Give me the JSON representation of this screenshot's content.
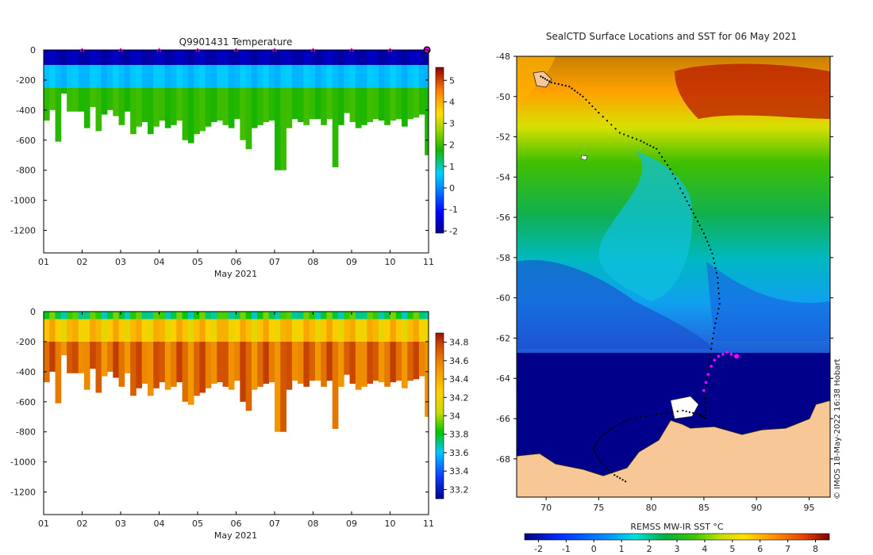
{
  "temperature_panel": {
    "title": "Q9901431  Temperature",
    "xlabel": "May 2021",
    "x_ticks": [
      "01",
      "02",
      "03",
      "04",
      "05",
      "06",
      "07",
      "08",
      "09",
      "10",
      "11"
    ],
    "y_ticks": [
      "0",
      "-200",
      "-400",
      "-600",
      "-800",
      "-1000",
      "-1200"
    ],
    "colorbar_ticks": [
      "5",
      "4",
      "3",
      "2",
      "1",
      "0",
      "-1",
      "-2"
    ]
  },
  "salinity_panel": {
    "xlabel": "May 2021",
    "x_ticks": [
      "01",
      "02",
      "03",
      "04",
      "05",
      "06",
      "07",
      "08",
      "09",
      "10",
      "11"
    ],
    "y_ticks": [
      "0",
      "-200",
      "-400",
      "-600",
      "-800",
      "-1000",
      "-1200"
    ],
    "colorbar_ticks": [
      "34.8",
      "34.6",
      "34.4",
      "34.2",
      "34",
      "33.8",
      "33.6",
      "33.4",
      "33.2"
    ]
  },
  "map_panel": {
    "title": "SealCTD Surface Locations and SST for 06 May 2021",
    "lon_ticks": [
      "70",
      "75",
      "80",
      "85",
      "90",
      "95"
    ],
    "lat_ticks": [
      "-48",
      "-50",
      "-52",
      "-54",
      "-56",
      "-58",
      "-60",
      "-62",
      "-64",
      "-66",
      "-68"
    ],
    "colorbar_label": "REMSS MW-IR SST °C",
    "colorbar_ticks": [
      "-2",
      "-1",
      "0",
      "1",
      "2",
      "3",
      "4",
      "5",
      "6",
      "7",
      "8"
    ],
    "credit": "© IMOS 18-May-2022 16:38 Hobart"
  },
  "chart_data": [
    {
      "type": "heatmap",
      "title": "Q9901431  Temperature",
      "xlabel": "May 2021",
      "ylabel": "",
      "xlim": [
        1,
        11
      ],
      "ylim": [
        -1350,
        0
      ],
      "colorbar_range": [
        -2.1,
        5.6
      ],
      "profile_days": [
        1.0,
        1.15,
        1.3,
        1.45,
        1.6,
        1.75,
        1.9,
        2.05,
        2.2,
        2.35,
        2.5,
        2.65,
        2.8,
        2.95,
        3.1,
        3.25,
        3.4,
        3.55,
        3.7,
        3.85,
        4.0,
        4.15,
        4.3,
        4.45,
        4.6,
        4.75,
        4.9,
        5.05,
        5.2,
        5.35,
        5.5,
        5.65,
        5.8,
        5.95,
        6.1,
        6.25,
        6.4,
        6.55,
        6.7,
        6.85,
        7.0,
        7.15,
        7.3,
        7.45,
        7.6,
        7.75,
        7.9,
        8.05,
        8.2,
        8.35,
        8.5,
        8.65,
        8.8,
        8.95,
        9.1,
        9.25,
        9.4,
        9.55,
        9.7,
        9.85,
        10.0,
        10.15,
        10.3,
        10.45,
        10.6,
        10.75,
        10.9
      ],
      "profile_max_depth_m": [
        470,
        400,
        610,
        290,
        410,
        410,
        410,
        520,
        380,
        540,
        430,
        400,
        440,
        500,
        410,
        560,
        510,
        480,
        560,
        510,
        470,
        520,
        500,
        470,
        600,
        620,
        560,
        540,
        510,
        480,
        470,
        500,
        520,
        460,
        600,
        660,
        520,
        500,
        480,
        470,
        800,
        800,
        520,
        460,
        480,
        500,
        460,
        460,
        500,
        460,
        780,
        500,
        420,
        480,
        520,
        500,
        480,
        460,
        470,
        500,
        470,
        460,
        510,
        460,
        450,
        430,
        700
      ],
      "surface_marker_days": [
        2,
        3,
        4,
        5,
        6,
        7,
        8,
        9,
        10,
        11
      ],
      "layers": [
        {
          "depth_from_m": 0,
          "depth_to_m": 100,
          "temp_c": -1.8
        },
        {
          "depth_from_m": 100,
          "depth_to_m": 250,
          "temp_c": 0.5
        },
        {
          "depth_from_m": 250,
          "depth_to_m": 1300,
          "temp_c": 1.9
        }
      ]
    },
    {
      "type": "heatmap",
      "title": "",
      "xlabel": "May 2021",
      "ylabel": "",
      "xlim": [
        1,
        11
      ],
      "ylim": [
        -1350,
        0
      ],
      "colorbar_range": [
        33.1,
        34.9
      ],
      "profile_days": [
        1.0,
        1.15,
        1.3,
        1.45,
        1.6,
        1.75,
        1.9,
        2.05,
        2.2,
        2.35,
        2.5,
        2.65,
        2.8,
        2.95,
        3.1,
        3.25,
        3.4,
        3.55,
        3.7,
        3.85,
        4.0,
        4.15,
        4.3,
        4.45,
        4.6,
        4.75,
        4.9,
        5.05,
        5.2,
        5.35,
        5.5,
        5.65,
        5.8,
        5.95,
        6.1,
        6.25,
        6.4,
        6.55,
        6.7,
        6.85,
        7.0,
        7.15,
        7.3,
        7.45,
        7.6,
        7.75,
        7.9,
        8.05,
        8.2,
        8.35,
        8.5,
        8.65,
        8.8,
        8.95,
        9.1,
        9.25,
        9.4,
        9.55,
        9.7,
        9.85,
        10.0,
        10.15,
        10.3,
        10.45,
        10.6,
        10.75,
        10.9
      ],
      "profile_max_depth_m": [
        470,
        400,
        610,
        290,
        410,
        410,
        410,
        520,
        380,
        540,
        430,
        400,
        440,
        500,
        410,
        560,
        510,
        480,
        560,
        510,
        470,
        520,
        500,
        470,
        600,
        620,
        560,
        540,
        510,
        480,
        470,
        500,
        520,
        460,
        600,
        660,
        520,
        500,
        480,
        470,
        800,
        800,
        520,
        460,
        480,
        500,
        460,
        460,
        500,
        460,
        780,
        500,
        420,
        480,
        520,
        500,
        480,
        460,
        470,
        500,
        470,
        460,
        510,
        460,
        450,
        430,
        700
      ],
      "layers": [
        {
          "depth_from_m": 0,
          "depth_to_m": 50,
          "salinity": 33.8
        },
        {
          "depth_from_m": 50,
          "depth_to_m": 200,
          "salinity": 34.3
        },
        {
          "depth_from_m": 200,
          "depth_to_m": 1300,
          "salinity": 34.65
        }
      ]
    },
    {
      "type": "heatmap",
      "title": "SealCTD Surface Locations and SST for 06 May 2021",
      "xlabel": "",
      "ylabel": "",
      "xlim": [
        67.2,
        97.0
      ],
      "ylim": [
        -69.9,
        -48.0
      ],
      "colorbar_label": "REMSS MW-IR SST °C",
      "colorbar_range": [
        -2.5,
        8.5
      ],
      "track_lon": [
        69.5,
        70.5,
        72.2,
        73.5,
        75.0,
        77.0,
        79.0,
        80.5,
        81.8,
        83.0,
        84.0,
        85.0,
        85.8,
        86.3,
        86.5,
        86.0,
        85.6,
        85.3,
        85.1,
        85.2,
        84.6,
        83.0,
        80.5,
        78.0,
        76.5,
        75.2,
        74.5,
        75.2,
        76.5,
        77.8
      ],
      "track_lat": [
        -49.0,
        -49.3,
        -49.5,
        -50.0,
        -50.8,
        -51.8,
        -52.2,
        -52.6,
        -53.6,
        -54.8,
        -55.8,
        -56.8,
        -57.8,
        -59.0,
        -60.3,
        -61.5,
        -62.8,
        -64.0,
        -65.0,
        -66.0,
        -65.8,
        -65.6,
        -65.8,
        -66.0,
        -66.4,
        -66.9,
        -67.5,
        -68.2,
        -68.8,
        -69.2
      ],
      "recent_profiles_lon": [
        85.0,
        85.2,
        85.4,
        85.7,
        86.0,
        86.4,
        86.8,
        87.2,
        87.6,
        88.0
      ],
      "recent_profiles_lat": [
        -64.6,
        -64.2,
        -63.8,
        -63.4,
        -63.1,
        -62.9,
        -62.8,
        -62.7,
        -62.8,
        -62.9
      ],
      "latest_profile": {
        "lon": 88.1,
        "lat": -62.9
      }
    }
  ]
}
